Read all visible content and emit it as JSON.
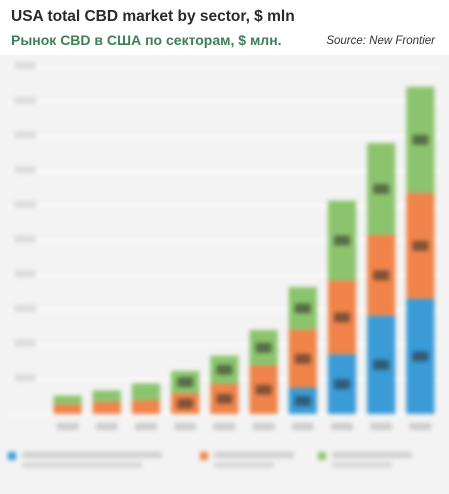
{
  "header": {
    "title": "USA total CBD market by sector, $ mln",
    "subtitle": "Рынок CBD в США по секторам, $ млн.",
    "source": "Source: New Frontier"
  },
  "colors": {
    "background": "#f3f3f3",
    "grid": "#ffffff",
    "series": [
      "#3a9bd6",
      "#f0844a",
      "#8cc46d"
    ],
    "title": "#2a2a2a",
    "subtitle": "#3d7f56"
  },
  "chart_data": {
    "type": "bar",
    "stacked": true,
    "grid": true,
    "legend_position": "bottom",
    "ylim": [
      0,
      1000
    ],
    "categories": [
      "",
      "",
      "",
      "",
      "",
      "",
      "",
      "",
      "",
      ""
    ],
    "series": [
      {
        "name": "",
        "values": [
          0,
          0,
          0,
          0,
          0,
          0,
          75,
          172,
          283,
          332
        ]
      },
      {
        "name": "",
        "values": [
          28,
          35,
          40,
          60,
          87,
          140,
          168,
          213,
          233,
          305
        ]
      },
      {
        "name": "",
        "values": [
          25,
          33,
          48,
          64,
          81,
          102,
          123,
          230,
          265,
          306
        ]
      }
    ]
  }
}
